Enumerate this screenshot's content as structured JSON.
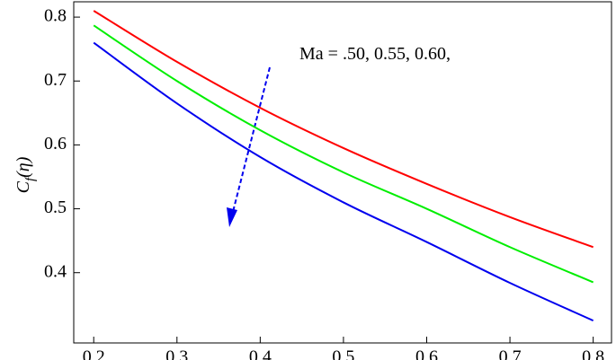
{
  "chart_data": {
    "type": "line",
    "annotation": "Ma = .50, 0.55, 0.60,",
    "y_label": "C",
    "y_label_sub": "f",
    "y_label_rest": "(η)",
    "x": [
      0.2,
      0.3,
      0.4,
      0.5,
      0.6,
      0.7,
      0.8
    ],
    "series": [
      {
        "color": "#ff0000",
        "values": [
          0.81,
          0.73,
          0.658,
          0.595,
          0.539,
          0.487,
          0.44
        ]
      },
      {
        "color": "#00ee00",
        "values": [
          0.787,
          0.7,
          0.623,
          0.557,
          0.5,
          0.44,
          0.385
        ]
      },
      {
        "color": "#0000ee",
        "values": [
          0.76,
          0.665,
          0.581,
          0.51,
          0.448,
          0.384,
          0.325
        ]
      }
    ],
    "xlim": [
      0.176,
      0.822
    ],
    "ylim": [
      0.29,
      0.824
    ],
    "xticks": [
      0.2,
      0.3,
      0.4,
      0.5,
      0.6,
      0.7,
      0.8
    ],
    "yticks": [
      0.4,
      0.5,
      0.6,
      0.7,
      0.8
    ]
  }
}
